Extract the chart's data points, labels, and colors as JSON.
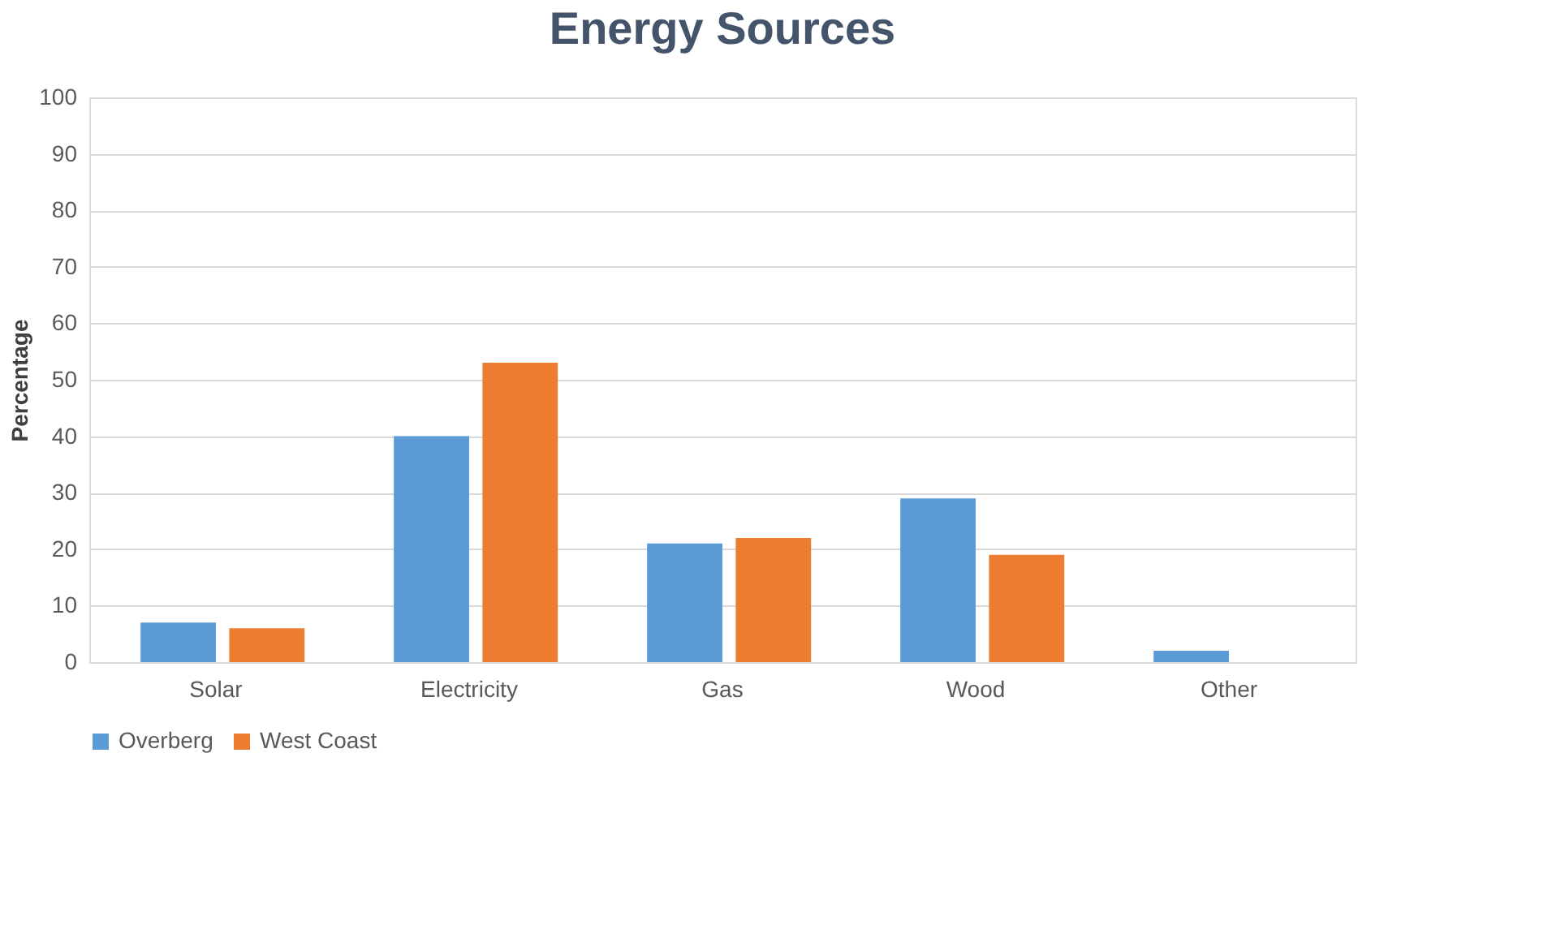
{
  "chart_data": {
    "type": "bar",
    "title": "Energy Sources",
    "ylabel": "Percentage",
    "categories": [
      "Solar",
      "Electricity",
      "Gas",
      "Wood",
      "Other"
    ],
    "series": [
      {
        "name": "Overberg",
        "color": "#5b9bd5",
        "values": [
          7,
          40,
          21,
          29,
          2
        ]
      },
      {
        "name": "West Coast",
        "color": "#ed7d31",
        "values": [
          6,
          53,
          22,
          19,
          0
        ]
      }
    ],
    "ylim": [
      0,
      100
    ],
    "yticks": [
      0,
      10,
      20,
      30,
      40,
      50,
      60,
      70,
      80,
      90,
      100
    ],
    "grid": "y",
    "legend": "bottom"
  }
}
